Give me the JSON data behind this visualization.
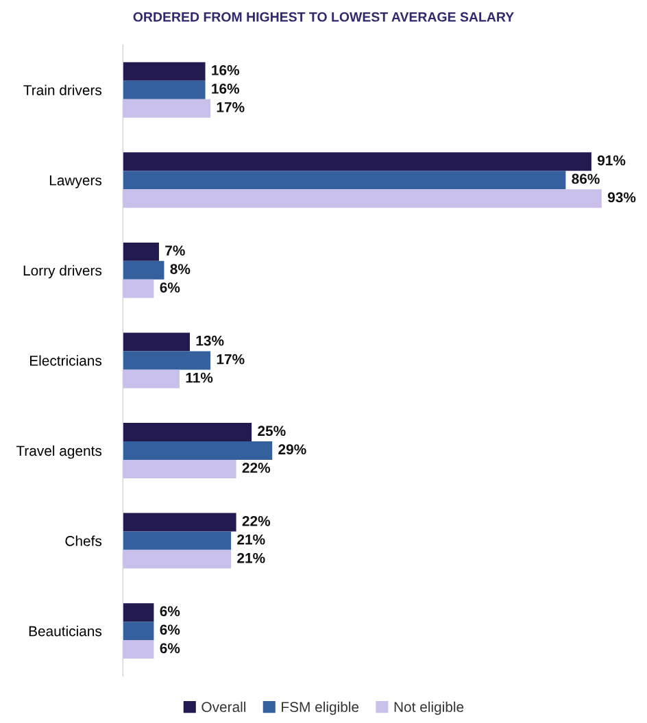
{
  "chart_data": {
    "type": "bar",
    "orientation": "horizontal",
    "title": "ORDERED FROM HIGHEST TO LOWEST AVERAGE SALARY",
    "categories": [
      "Train drivers",
      "Lawyers",
      "Lorry drivers",
      "Electricians",
      "Travel agents",
      "Chefs",
      "Beauticians"
    ],
    "series": [
      {
        "name": "Overall",
        "color": "#231a4f",
        "values": [
          16,
          91,
          7,
          13,
          25,
          22,
          6
        ],
        "value_labels": [
          "16%",
          "91%",
          "7%",
          "13%",
          "25%",
          "22%",
          "6%"
        ]
      },
      {
        "name": "FSM eligible",
        "color": "#35609e",
        "values": [
          16,
          86,
          8,
          17,
          29,
          21,
          6
        ],
        "value_labels": [
          "16%",
          "86%",
          "8%",
          "17%",
          "29%",
          "21%",
          "6%"
        ]
      },
      {
        "name": "Not eligible",
        "color": "#c8c0ea",
        "values": [
          17,
          93,
          6,
          11,
          22,
          21,
          6
        ],
        "value_labels": [
          "17%",
          "93%",
          "6%",
          "11%",
          "22%",
          "21%",
          "6%"
        ]
      }
    ],
    "tick_labels": "y",
    "grid": false,
    "legend": "bottom"
  }
}
